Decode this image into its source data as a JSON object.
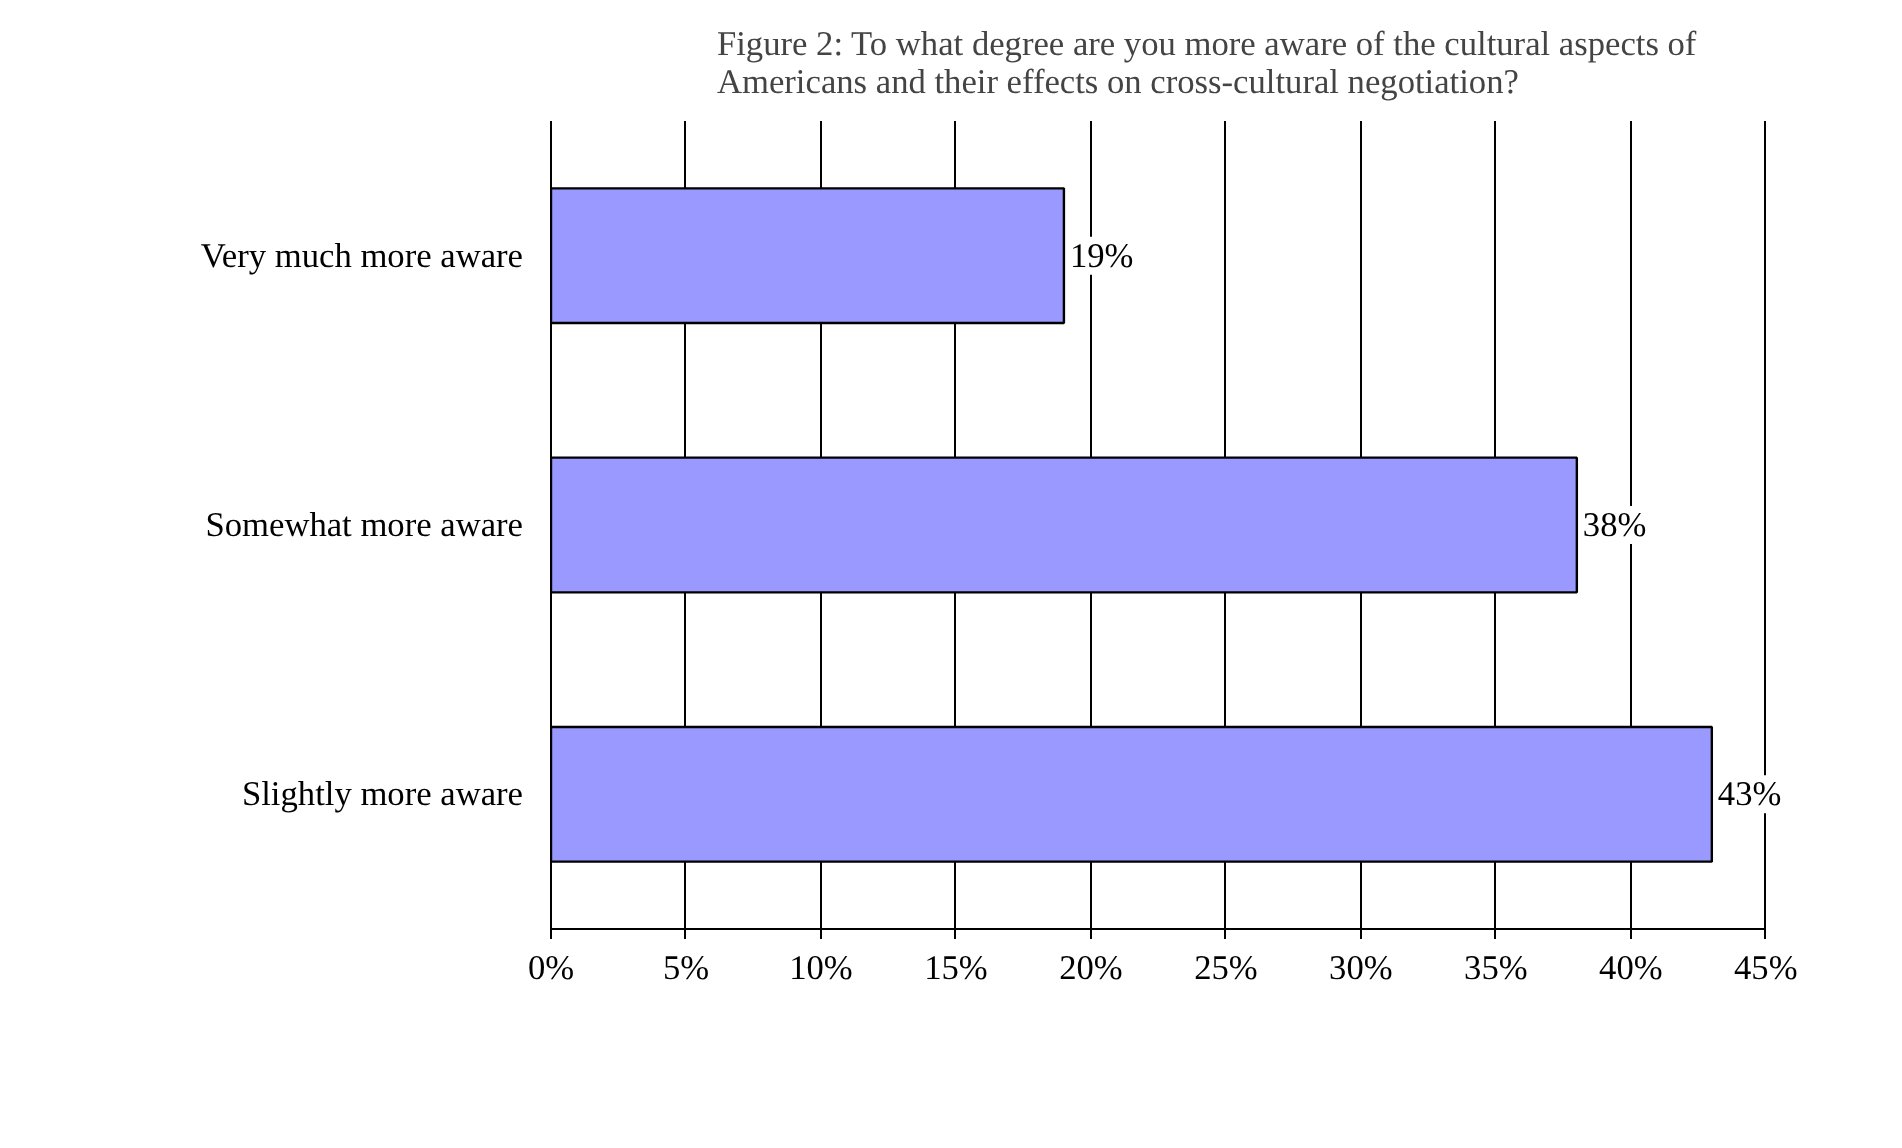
{
  "chart_data": {
    "type": "bar",
    "orientation": "horizontal",
    "title": "Figure 2: To what degree are you more aware of the cultural aspects of Americans and their effects on cross-cultural negotiation?",
    "categories": [
      "Very much more aware",
      "Somewhat more aware",
      "Slightly more aware"
    ],
    "values": [
      19,
      38,
      43
    ],
    "value_labels": [
      "19%",
      "38%",
      "43%"
    ],
    "color": "#9999ff",
    "xlim": [
      0,
      45
    ],
    "xticks": [
      {
        "value": 0,
        "label": "0%"
      },
      {
        "value": 5,
        "label": "5%"
      },
      {
        "value": 10,
        "label": "10%"
      },
      {
        "value": 15,
        "label": "15%"
      },
      {
        "value": 20,
        "label": "20%"
      },
      {
        "value": 25,
        "label": "25%"
      },
      {
        "value": 30,
        "label": "30%"
      },
      {
        "value": 35,
        "label": "35%"
      },
      {
        "value": 40,
        "label": "40%"
      },
      {
        "value": 45,
        "label": "45%"
      }
    ],
    "grid": "x"
  }
}
